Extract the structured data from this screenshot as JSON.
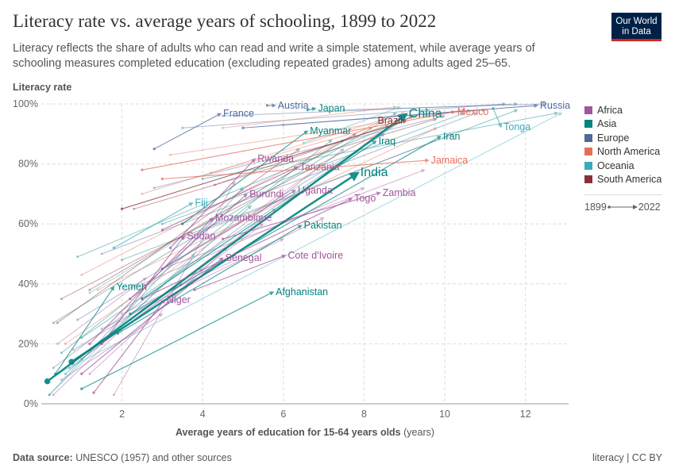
{
  "header": {
    "title": "Literacy rate vs. average years of schooling, 1899 to 2022",
    "subtitle": "Literacy reflects the share of adults who can read and write a simple statement, while average years of schooling measures completed education (excluding repeated grades) among adults aged 25–65.",
    "logo": "Our World in Data"
  },
  "footer": {
    "source_label": "Data source:",
    "source": "UNESCO (1957) and other sources",
    "license": "literacy | CC BY"
  },
  "legend": {
    "items": [
      {
        "name": "Africa",
        "color": "#a2559c"
      },
      {
        "name": "Asia",
        "color": "#00847e"
      },
      {
        "name": "Europe",
        "color": "#4c6a9c"
      },
      {
        "name": "North America",
        "color": "#e56e5a"
      },
      {
        "name": "Oceania",
        "color": "#38aaba"
      },
      {
        "name": "South America",
        "color": "#883039"
      }
    ],
    "start_year": "1899",
    "end_year": "2022"
  },
  "chart_data": {
    "type": "scatter",
    "title": "Literacy rate vs. average years of schooling, 1899 to 2022",
    "xlabel": "Average years of education for 15-64 years olds",
    "xlabel_unit": "(years)",
    "ylabel": "Literacy rate",
    "xlim": [
      0,
      13.07
    ],
    "ylim": [
      0,
      100
    ],
    "xticks": [
      "2",
      "4",
      "6",
      "8",
      "10",
      "12"
    ],
    "xtick_values": [
      2,
      4,
      6,
      8,
      10,
      12
    ],
    "yticks": [
      "0%",
      "20%",
      "40%",
      "60%",
      "80%",
      "100%"
    ],
    "ytick_values": [
      0,
      20,
      40,
      60,
      80,
      100
    ],
    "grid": true,
    "labeled": [
      {
        "name": "China",
        "region": "Asia",
        "x0": 0.15,
        "y0": 7.5,
        "x1": 9.05,
        "y1": 96.6,
        "big": true
      },
      {
        "name": "India",
        "region": "Asia",
        "x0": 0.75,
        "y0": 14,
        "x1": 7.85,
        "y1": 77,
        "big": true
      },
      {
        "name": "Pakistan",
        "region": "Asia",
        "x0": 1.9,
        "y0": 23.5,
        "x1": 6.45,
        "y1": 59.5
      },
      {
        "name": "Afghanistan",
        "region": "Asia",
        "x0": 1.0,
        "y0": 5,
        "x1": 5.75,
        "y1": 37.3
      },
      {
        "name": "Yemen",
        "region": "Asia",
        "x0": 0.35,
        "y0": 10,
        "x1": 1.8,
        "y1": 39
      },
      {
        "name": "Myanmar",
        "region": "Asia",
        "x0": 3.5,
        "y0": 60,
        "x1": 6.6,
        "y1": 91
      },
      {
        "name": "Iraq",
        "region": "Asia",
        "x0": 2.5,
        "y0": 35,
        "x1": 8.3,
        "y1": 87.6
      },
      {
        "name": "Iran",
        "region": "Asia",
        "x0": 2.2,
        "y0": 30,
        "x1": 9.9,
        "y1": 89.2
      },
      {
        "name": "Japan",
        "region": "Asia",
        "x0": 6.6,
        "y0": 98,
        "x1": 6.8,
        "y1": 98.5
      },
      {
        "name": "Niger",
        "region": "Africa",
        "x0": 1.3,
        "y0": 3.7,
        "x1": 3.05,
        "y1": 34.7
      },
      {
        "name": "Senegal",
        "region": "Africa",
        "x0": 1.0,
        "y0": 10,
        "x1": 4.5,
        "y1": 48.7
      },
      {
        "name": "Sudan",
        "region": "Africa",
        "x0": 1.5,
        "y0": 20,
        "x1": 3.55,
        "y1": 56
      },
      {
        "name": "Mozambique",
        "region": "Africa",
        "x0": 1.2,
        "y0": 20,
        "x1": 4.25,
        "y1": 62
      },
      {
        "name": "Burundi",
        "region": "Africa",
        "x0": 2.2,
        "y0": 35,
        "x1": 5.1,
        "y1": 70
      },
      {
        "name": "Uganda",
        "region": "Africa",
        "x0": 3.0,
        "y0": 45,
        "x1": 6.3,
        "y1": 71.2
      },
      {
        "name": "Togo",
        "region": "Africa",
        "x0": 2.5,
        "y0": 35,
        "x1": 7.7,
        "y1": 68.5
      },
      {
        "name": "Zambia",
        "region": "Africa",
        "x0": 4.5,
        "y0": 55,
        "x1": 8.4,
        "y1": 70.4
      },
      {
        "name": "Cote d'Ivoire",
        "region": "Africa",
        "x0": 3.8,
        "y0": 38,
        "x1": 6.05,
        "y1": 49.5
      },
      {
        "name": "Rwanda",
        "region": "Africa",
        "x0": 3.2,
        "y0": 52,
        "x1": 5.3,
        "y1": 81.7
      },
      {
        "name": "Tanzania",
        "region": "Africa",
        "x0": 3.0,
        "y0": 58,
        "x1": 6.35,
        "y1": 79
      },
      {
        "name": "Fiji",
        "region": "Oceania",
        "x0": 1.8,
        "y0": 52,
        "x1": 3.75,
        "y1": 67
      },
      {
        "name": "Tonga",
        "region": "Oceania",
        "x0": 11.2,
        "y0": 98.5,
        "x1": 11.4,
        "y1": 92.3
      },
      {
        "name": "France",
        "region": "Europe",
        "x0": 2.8,
        "y0": 85,
        "x1": 4.45,
        "y1": 96.8
      },
      {
        "name": "Austria",
        "region": "Europe",
        "x0": 5.6,
        "y0": 99.5,
        "x1": 5.8,
        "y1": 99.5
      },
      {
        "name": "Russia",
        "region": "Europe",
        "x0": 5.0,
        "y0": 92,
        "x1": 12.3,
        "y1": 99.5
      },
      {
        "name": "Brazil",
        "region": "South America",
        "x0": 2.0,
        "y0": 65,
        "x1": 9.05,
        "y1": 94.4
      },
      {
        "name": "Mexico",
        "region": "North America",
        "x0": 2.5,
        "y0": 78,
        "x1": 10.25,
        "y1": 97.4
      },
      {
        "name": "Jamaica",
        "region": "North America",
        "x0": 3.0,
        "y0": 75,
        "x1": 9.6,
        "y1": 81.2
      }
    ],
    "unlabeled": [
      [
        "Africa",
        0.3,
        3,
        2.0,
        25
      ],
      [
        "Africa",
        0.5,
        8,
        3.0,
        30
      ],
      [
        "Africa",
        0.7,
        12,
        4.0,
        45
      ],
      [
        "Africa",
        1.0,
        15,
        5.5,
        60
      ],
      [
        "Africa",
        0.8,
        18,
        3.5,
        40
      ],
      [
        "Africa",
        1.5,
        25,
        6.0,
        55
      ],
      [
        "Africa",
        2.0,
        30,
        7.0,
        62
      ],
      [
        "Africa",
        1.8,
        3,
        4.8,
        74
      ],
      [
        "Africa",
        2.5,
        40,
        8.0,
        72
      ],
      [
        "Africa",
        3.0,
        45,
        9.5,
        78
      ],
      [
        "Africa",
        0.4,
        20,
        2.6,
        42
      ],
      [
        "Africa",
        1.2,
        10,
        4.6,
        52
      ],
      [
        "Africa",
        3.5,
        55,
        10.2,
        90
      ],
      [
        "Africa",
        2.2,
        28,
        5.8,
        65
      ],
      [
        "Asia",
        0.2,
        3,
        5.0,
        72
      ],
      [
        "Asia",
        0.5,
        17,
        7.2,
        88
      ],
      [
        "Asia",
        0.3,
        27,
        8.8,
        97
      ],
      [
        "Asia",
        0.9,
        49,
        9.6,
        98
      ],
      [
        "Asia",
        3.0,
        60,
        10.5,
        97
      ],
      [
        "Asia",
        0.6,
        10,
        5.2,
        66
      ],
      [
        "Asia",
        2.0,
        48,
        11.8,
        98
      ],
      [
        "Asia",
        4.0,
        75,
        12.8,
        97
      ],
      [
        "Asia",
        1.0,
        22,
        9.0,
        95
      ],
      [
        "Europe",
        0.9,
        28,
        8.5,
        90
      ],
      [
        "Europe",
        3.5,
        92,
        11.5,
        100
      ],
      [
        "Europe",
        4.5,
        96,
        11.8,
        100
      ],
      [
        "Europe",
        6.0,
        93,
        11.0,
        98
      ],
      [
        "Europe",
        1.5,
        50,
        10.8,
        97
      ],
      [
        "Europe",
        7.5,
        98,
        12.5,
        100
      ],
      [
        "Europe",
        2.8,
        72,
        10.0,
        96
      ],
      [
        "Europe",
        0.3,
        12,
        7.5,
        85
      ],
      [
        "North America",
        0.6,
        20,
        7.0,
        80
      ],
      [
        "North America",
        1.0,
        43,
        8.5,
        95
      ],
      [
        "North America",
        2.5,
        70,
        9.0,
        97
      ],
      [
        "North America",
        4.5,
        92,
        8.8,
        99
      ],
      [
        "North America",
        3.2,
        83,
        10.5,
        98
      ],
      [
        "North America",
        1.4,
        38,
        9.8,
        92
      ],
      [
        "North America",
        4.2,
        77,
        8.2,
        92
      ],
      [
        "Oceania",
        0.2,
        3,
        3.8,
        50
      ],
      [
        "Oceania",
        0.4,
        10,
        12.9,
        97
      ],
      [
        "Oceania",
        1.2,
        37,
        7.5,
        88
      ],
      [
        "Oceania",
        6.5,
        87,
        8.9,
        99
      ],
      [
        "South America",
        0.5,
        35,
        9.2,
        96
      ],
      [
        "South America",
        1.2,
        38,
        7.8,
        90
      ],
      [
        "South America",
        2.3,
        65,
        9.8,
        95
      ],
      [
        "South America",
        4.3,
        73,
        8.6,
        93
      ],
      [
        "South America",
        0.4,
        27,
        6.4,
        85
      ]
    ]
  }
}
